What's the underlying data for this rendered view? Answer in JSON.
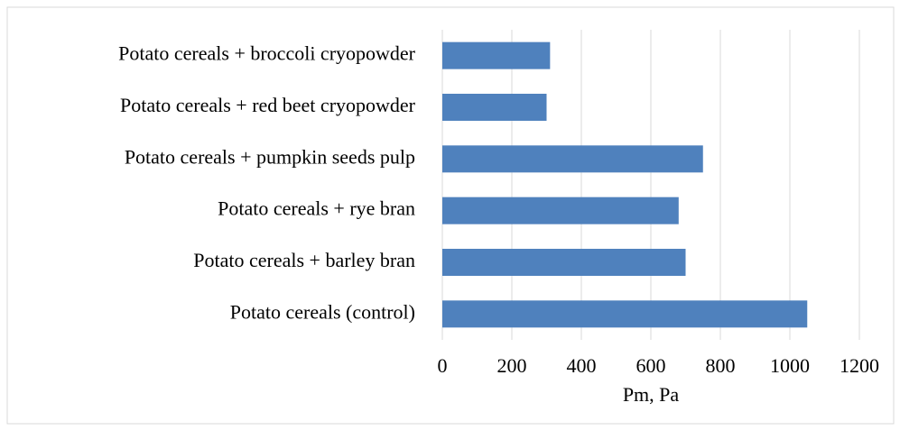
{
  "chart_data": {
    "type": "bar",
    "orientation": "horizontal",
    "categories": [
      "Potato cereals + broccoli cryopowder",
      "Potato cereals + red beet cryopowder",
      "Potato cereals + pumpkin seeds pulp",
      "Potato cereals + rye bran",
      "Potato cereals + barley bran",
      "Potato cereals (control)"
    ],
    "values": [
      310,
      300,
      750,
      680,
      700,
      1050
    ],
    "color": "#4f81bd",
    "xlabel": "Pm, Pa",
    "xlim": [
      0,
      1200
    ],
    "xticks": [
      0,
      200,
      400,
      600,
      800,
      1000,
      1200
    ],
    "grid": true
  }
}
